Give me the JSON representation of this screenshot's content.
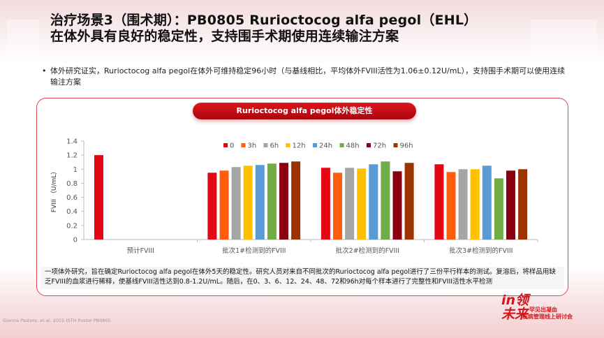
{
  "header": {
    "title_line1": "治疗场景3（围术期）：PB0805 Rurioctocog alfa pegol（EHL）",
    "title_line2": "在体外具有良好的稳定性，支持围手术期使用连续输注方案"
  },
  "bullet": "体外研究证实，Rurioctocog alfa pegol在体外可维持稳定96小时（与基线相比，平均体外FVIII活性为1.06±0.12U/mL），支持围手术期可以使用连续输注方案",
  "chart_title": "Rurioctocog alfa pegol体外稳定性",
  "chart_data": {
    "type": "bar",
    "title": "Rurioctocog alfa pegol体外稳定性",
    "ylabel": "FVIII （U/mL）",
    "xlabel": "",
    "ylim": [
      0,
      1.4
    ],
    "yticks": [
      "0",
      "0.2",
      "0.4",
      "0.6",
      "0.8",
      "1",
      "1.2",
      "1.4"
    ],
    "categories": [
      "预计FVIII",
      "批次1#检测到的FVIII",
      "批次2#检测到的FVIII",
      "批次3#检测到的FVIII"
    ],
    "legend_position": "top-right",
    "grid": false,
    "series": [
      {
        "name": "0",
        "color": "#e30613",
        "values": [
          1.2,
          0.95,
          1.02,
          1.07
        ]
      },
      {
        "name": "3h",
        "color": "#ff5e0e",
        "values": [
          null,
          0.98,
          0.95,
          0.96
        ]
      },
      {
        "name": "6h",
        "color": "#a5a5a5",
        "values": [
          null,
          1.03,
          1.02,
          1.0
        ]
      },
      {
        "name": "12h",
        "color": "#ffc000",
        "values": [
          null,
          1.05,
          1.01,
          1.0
        ]
      },
      {
        "name": "24h",
        "color": "#5b9bd5",
        "values": [
          null,
          1.06,
          1.07,
          1.05
        ]
      },
      {
        "name": "48h",
        "color": "#70ad47",
        "values": [
          null,
          1.08,
          1.11,
          0.87
        ]
      },
      {
        "name": "72h",
        "color": "#8b0010",
        "values": [
          null,
          1.09,
          0.97,
          0.98
        ]
      },
      {
        "name": "96h",
        "color": "#9c3300",
        "values": [
          null,
          1.11,
          1.09,
          1.0
        ]
      }
    ]
  },
  "footnote": "一项体外研究，旨在确定Rurioctocog alfa pegol在体外5天的稳定性。研究人员对来自不同批次的Rurioctocog alfa pegol进行了三份平行样本的测试。复溶后，将样品用缺乏FVIII的血浆进行稀释，使基线FVIII活性达到0.8-1.2U/mL。随后，在0、3、6、12、24、48、72和96h对每个样本进行了完整性和FVIII活性水平检测",
  "citation": "Gianna Pastore, et al. 2025 ISTH Poster PB0805",
  "logo": {
    "big": "in领未来",
    "line1": "罕见出凝血",
    "line2": "疾病管理线上研讨会"
  }
}
